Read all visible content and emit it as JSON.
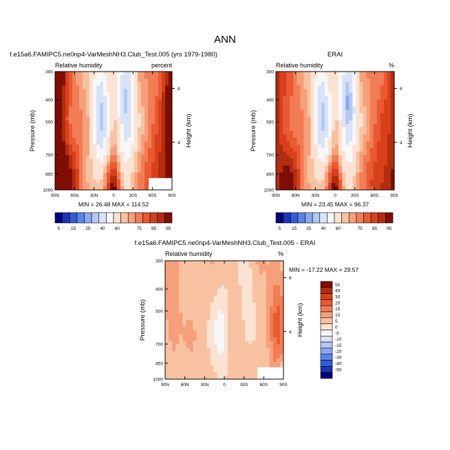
{
  "page_title": "ANN",
  "chart_data": [
    {
      "type": "heatmap",
      "title": "f.e15a6.FAMIPC5.ne0np4-VarMeshNH3.Club_Test.005 (yrs 1979-1980)",
      "left_label": "Relative humidity",
      "right_label": "percent",
      "xlabel": "",
      "ylabel": "Pressure (mb)",
      "y2label": "Height (km)",
      "xticks": [
        "90N",
        "60N",
        "30N",
        "0",
        "30S",
        "60S",
        "90S"
      ],
      "yticks": [
        "300",
        "400",
        "500",
        "700",
        "850",
        "1000"
      ],
      "y2ticks": [
        "8",
        "4"
      ],
      "ylim": [
        1000,
        300
      ],
      "stats": "MIN = 26.48  MAX = 114.52",
      "colorbar_labels": [
        "5",
        "15",
        "25",
        "40",
        "60",
        "75",
        "85",
        "95"
      ]
    },
    {
      "type": "heatmap",
      "title": "ERAI",
      "left_label": "Relative humidity",
      "right_label": "%",
      "xlabel": "",
      "ylabel": "Pressure (mb)",
      "y2label": "Height (km)",
      "xticks": [
        "90N",
        "60N",
        "30N",
        "0",
        "30S",
        "60S",
        "90S"
      ],
      "yticks": [
        "300",
        "400",
        "500",
        "700",
        "850",
        "1000"
      ],
      "y2ticks": [
        "8",
        "4"
      ],
      "ylim": [
        1000,
        300
      ],
      "stats": "MIN = 23.45  MAX = 96.37",
      "colorbar_labels": [
        "5",
        "15",
        "25",
        "40",
        "60",
        "75",
        "85",
        "95"
      ]
    },
    {
      "type": "heatmap",
      "title": "f.e15a6.FAMIPC5.ne0np4-VarMeshNH3.Club_Test.005 - ERAI",
      "left_label": "Relative humidity",
      "right_label": "%",
      "xlabel": "",
      "ylabel": "Pressure (mb)",
      "y2label": "Height (km)",
      "xticks": [
        "90N",
        "60N",
        "30N",
        "0",
        "30S",
        "60S",
        "90S"
      ],
      "yticks": [
        "300",
        "400",
        "500",
        "700",
        "850",
        "1000"
      ],
      "y2ticks": [
        "8",
        "4"
      ],
      "ylim": [
        1000,
        300
      ],
      "stats": "MIN = -17.22  MAX = 29.57",
      "colorbar_labels": [
        "50",
        "40",
        "30",
        "20",
        "15",
        "10",
        "5",
        "0",
        "-5",
        "-10",
        "-15",
        "-20",
        "-30",
        "-40",
        "-50"
      ]
    }
  ],
  "colors": {
    "abs_scale": [
      "#00007f",
      "#1a35b8",
      "#2f5ed8",
      "#5a85e8",
      "#89a8f0",
      "#b4c8f4",
      "#d8e3f8",
      "#f7f7f7",
      "#fbe3d4",
      "#f8c2a2",
      "#f5a07a",
      "#f17d55",
      "#ea5a32",
      "#d8401c",
      "#b22d10",
      "#7f0d04"
    ],
    "diff_scale": [
      "#7f0d04",
      "#b22d10",
      "#d8401c",
      "#ea5a32",
      "#f17d55",
      "#f5a07a",
      "#f8c2a2",
      "#fbe3d4",
      "#f7f7f7",
      "#d8e3f8",
      "#b4c8f4",
      "#89a8f0",
      "#5a85e8",
      "#2f5ed8",
      "#1a35b8",
      "#00007f"
    ]
  }
}
